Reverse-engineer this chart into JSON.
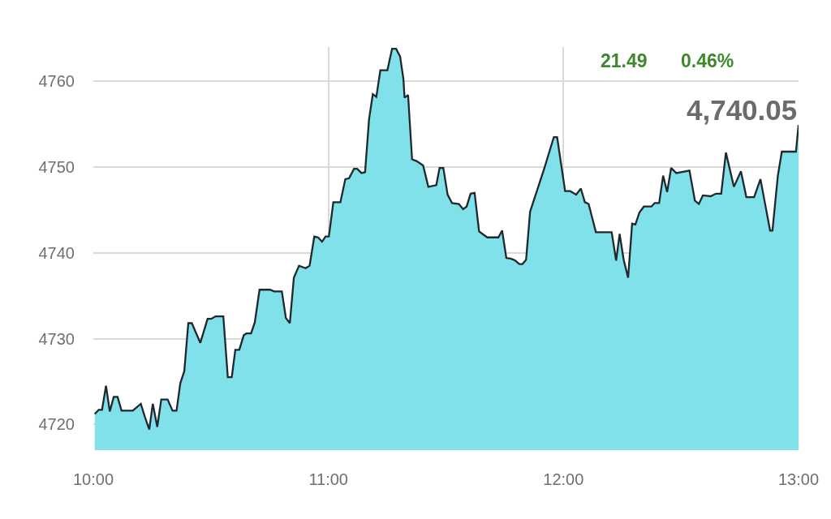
{
  "chart_data": {
    "type": "area",
    "annotations": [
      "21.49",
      "0.46%",
      "4,740.05"
    ],
    "x": [
      10.006,
      10.023,
      10.037,
      10.054,
      10.07,
      10.087,
      10.103,
      10.12,
      10.168,
      10.202,
      10.219,
      10.238,
      10.253,
      10.272,
      10.289,
      10.316,
      10.337,
      10.354,
      10.37,
      10.387,
      10.404,
      10.419,
      10.455,
      10.486,
      10.502,
      10.52,
      10.553,
      10.572,
      10.589,
      10.604,
      10.621,
      10.64,
      10.651,
      10.671,
      10.687,
      10.707,
      10.752,
      10.769,
      10.802,
      10.819,
      10.836,
      10.853,
      10.875,
      10.903,
      10.92,
      10.94,
      10.956,
      10.973,
      10.988,
      11.002,
      11.021,
      11.051,
      11.072,
      11.088,
      11.109,
      11.122,
      11.141,
      11.156,
      11.173,
      11.189,
      11.204,
      11.221,
      11.251,
      11.271,
      11.288,
      11.305,
      11.319,
      11.324,
      11.339,
      11.356,
      11.375,
      11.403,
      11.425,
      11.459,
      11.473,
      11.489,
      11.507,
      11.526,
      11.555,
      11.573,
      11.588,
      11.605,
      11.622,
      11.641,
      11.676,
      11.723,
      11.739,
      11.757,
      11.778,
      11.795,
      11.812,
      11.826,
      11.841,
      11.858,
      11.919,
      11.959,
      11.973,
      12.007,
      12.029,
      12.054,
      12.074,
      12.091,
      12.107,
      12.138,
      12.205,
      12.224,
      12.239,
      12.256,
      12.275,
      12.292,
      12.306,
      12.323,
      12.342,
      12.374,
      12.388,
      12.407,
      12.424,
      12.441,
      12.458,
      12.48,
      12.536,
      12.559,
      12.576,
      12.593,
      12.626,
      12.649,
      12.671,
      12.691,
      12.725,
      12.755,
      12.778,
      12.811,
      12.838,
      12.879,
      12.889,
      12.912,
      12.929,
      12.989,
      13.0
    ],
    "values": [
      4721.2,
      4721.7,
      4721.7,
      4724.5,
      4721.5,
      4723.2,
      4723.2,
      4721.6,
      4721.6,
      4722.4,
      4720.9,
      4719.4,
      4722.4,
      4719.7,
      4722.9,
      4722.9,
      4721.6,
      4721.6,
      4724.8,
      4726.2,
      4731.8,
      4731.8,
      4729.5,
      4732.3,
      4732.3,
      4732.6,
      4732.6,
      4725.5,
      4725.5,
      4728.7,
      4728.7,
      4730.4,
      4730.6,
      4730.6,
      4731.9,
      4735.7,
      4735.7,
      4735.5,
      4735.5,
      4732.4,
      4731.8,
      4737.1,
      4738.5,
      4738.2,
      4738.5,
      4741.9,
      4741.8,
      4741.3,
      4741.9,
      4741.9,
      4745.9,
      4745.9,
      4748.6,
      4748.7,
      4749.8,
      4749.8,
      4749.3,
      4749.4,
      4755.6,
      4758.5,
      4758.2,
      4761.3,
      4761.3,
      4763.8,
      4763.8,
      4762.9,
      4760.3,
      4758.1,
      4758.4,
      4750.9,
      4750.7,
      4750.2,
      4747.7,
      4747.9,
      4749.9,
      4749.9,
      4746.8,
      4745.8,
      4745.7,
      4745.1,
      4745.4,
      4746.9,
      4747.0,
      4742.5,
      4741.8,
      4741.8,
      4742.6,
      4739.4,
      4739.3,
      4739.1,
      4738.7,
      4738.7,
      4739.2,
      4744.8,
      4749.9,
      4753.5,
      4753.5,
      4747.2,
      4747.2,
      4746.8,
      4747.5,
      4745.9,
      4745.7,
      4742.4,
      4742.4,
      4739.1,
      4742.2,
      4739.2,
      4737.1,
      4743.4,
      4743.3,
      4744.7,
      4745.4,
      4745.4,
      4745.8,
      4745.8,
      4749.0,
      4747.1,
      4749.9,
      4749.3,
      4749.6,
      4746.1,
      4745.7,
      4746.7,
      4746.6,
      4746.9,
      4746.9,
      4751.7,
      4747.7,
      4749.5,
      4746.5,
      4746.5,
      4748.6,
      4742.6,
      4742.6,
      4749.0,
      4751.8,
      4751.8,
      4754.9
    ],
    "color": "#80e1eb",
    "xlim": [
      10,
      13
    ],
    "xticks": [
      {
        "value": 10,
        "label": "10:00"
      },
      {
        "value": 11,
        "label": "11:00"
      },
      {
        "value": 12,
        "label": "12:00"
      },
      {
        "value": 13,
        "label": "13:00"
      }
    ],
    "ylim": [
      4717,
      4764
    ],
    "yticks": [
      4720,
      4730,
      4740,
      4750,
      4760
    ],
    "grid": true
  }
}
